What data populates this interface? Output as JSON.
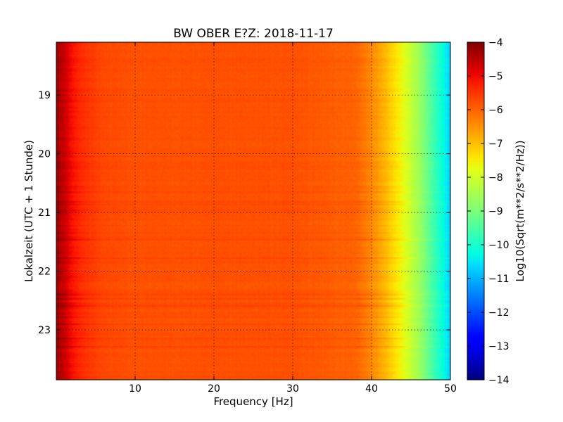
{
  "chart_data": {
    "type": "heatmap",
    "title": "BW OBER E?Z: 2018-11-17",
    "xlabel": "Frequency [Hz]",
    "ylabel": "Lokalzeit (UTC + 1 Stunde)",
    "xlim": [
      0,
      50
    ],
    "ylim": [
      18.1,
      23.85
    ],
    "x_ticks": [
      10,
      20,
      30,
      40,
      50
    ],
    "y_ticks": [
      19,
      20,
      21,
      22,
      23
    ],
    "grid": true,
    "colormap": "jet",
    "colorbar": {
      "label": "Log10(Sqrt(m**2/s**2/Hz))",
      "min": -14,
      "max": -4,
      "ticks": [
        -4,
        -5,
        -6,
        -7,
        -8,
        -9,
        -10,
        -11,
        -12,
        -13,
        -14
      ]
    },
    "frequency_profile": {
      "frequency_hz": [
        0,
        1,
        2,
        4,
        6,
        10,
        20,
        30,
        38,
        40,
        42,
        44,
        46,
        48,
        50
      ],
      "level": [
        -4.5,
        -4.8,
        -5.2,
        -5.5,
        -5.7,
        -5.8,
        -5.8,
        -5.8,
        -6.0,
        -6.4,
        -7.0,
        -7.7,
        -8.6,
        -9.7,
        -10.7
      ]
    }
  }
}
